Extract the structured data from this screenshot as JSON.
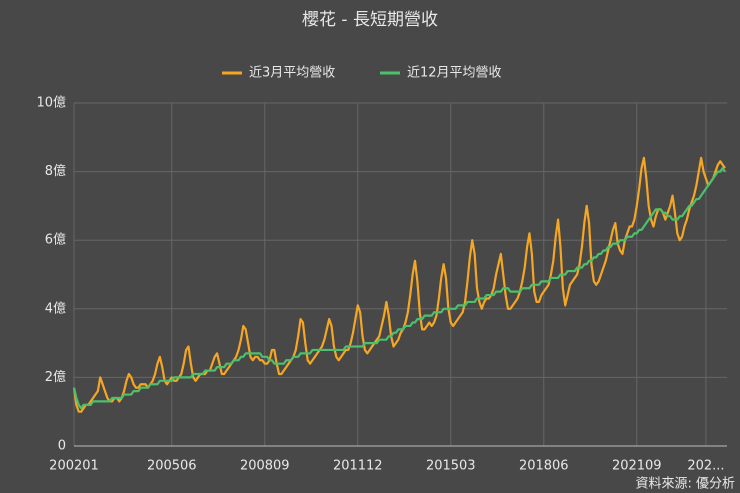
{
  "chart_data": {
    "type": "line",
    "title": "櫻花 - 長短期營收",
    "source": "資料來源: 優分析",
    "categories": [
      "200201",
      null,
      null,
      null,
      null,
      null,
      null,
      null,
      null,
      null,
      null,
      null,
      null,
      null,
      null,
      null,
      null,
      null,
      null,
      null,
      null,
      null,
      null,
      null,
      null,
      null,
      null,
      null,
      null,
      null,
      null,
      null,
      null,
      null,
      null,
      null,
      null,
      null,
      null,
      null,
      null,
      "200506",
      null,
      null,
      null,
      null,
      null,
      null,
      null,
      null,
      null,
      null,
      null,
      null,
      null,
      null,
      null,
      null,
      null,
      null,
      null,
      null,
      null,
      null,
      null,
      null,
      null,
      null,
      null,
      null,
      null,
      null,
      null,
      null,
      null,
      null,
      null,
      null,
      null,
      null,
      "200809",
      null,
      null,
      null,
      null,
      null,
      null,
      null,
      null,
      null,
      null,
      null,
      null,
      null,
      null,
      null,
      null,
      null,
      null,
      null,
      null,
      null,
      null,
      null,
      null,
      null,
      null,
      null,
      null,
      null,
      null,
      null,
      null,
      null,
      null,
      null,
      null,
      null,
      null,
      "201112",
      null,
      null,
      null,
      null,
      null,
      null,
      null,
      null,
      null,
      null,
      null,
      null,
      null,
      null,
      null,
      null,
      null,
      null,
      null,
      null,
      null,
      null,
      null,
      null,
      null,
      null,
      null,
      null,
      null,
      null,
      null,
      null,
      null,
      null,
      null,
      null,
      null,
      null,
      "201503",
      null,
      null,
      null,
      null,
      null,
      null,
      null,
      null,
      null,
      null,
      null,
      null,
      null,
      null,
      null,
      null,
      null,
      null,
      null,
      null,
      null,
      null,
      null,
      null,
      null,
      null,
      null,
      null,
      null,
      null,
      null,
      null,
      null,
      null,
      null,
      null,
      null,
      null,
      "201806",
      null,
      null,
      null,
      null,
      null,
      null,
      null,
      null,
      null,
      null,
      null,
      null,
      null,
      null,
      null,
      null,
      null,
      null,
      null,
      null,
      null,
      null,
      null,
      null,
      null,
      null,
      null,
      null,
      null,
      null,
      null,
      null,
      null,
      null,
      null,
      null,
      null,
      null,
      "202109",
      null,
      null,
      null,
      null,
      null,
      null,
      null,
      null,
      null,
      null,
      null,
      null,
      null,
      null,
      null,
      null,
      null,
      null,
      null,
      null,
      null,
      null,
      null,
      null,
      null,
      null,
      null,
      null,
      "202...",
      null,
      null,
      null,
      null,
      null,
      null,
      null,
      null
    ],
    "series": [
      {
        "name": "近3月平均營收",
        "color": "#f5a623",
        "values": [
          1.7,
          1.2,
          1.0,
          1.0,
          1.1,
          1.2,
          1.2,
          1.3,
          1.4,
          1.5,
          1.6,
          2.0,
          1.8,
          1.6,
          1.4,
          1.3,
          1.3,
          1.4,
          1.4,
          1.3,
          1.4,
          1.6,
          1.9,
          2.1,
          2.0,
          1.8,
          1.7,
          1.7,
          1.8,
          1.8,
          1.8,
          1.7,
          1.8,
          1.9,
          2.1,
          2.4,
          2.6,
          2.3,
          1.9,
          1.8,
          1.9,
          2.0,
          1.9,
          1.9,
          2.0,
          2.1,
          2.4,
          2.8,
          2.9,
          2.4,
          2.0,
          1.9,
          2.0,
          2.1,
          2.1,
          2.1,
          2.2,
          2.2,
          2.4,
          2.6,
          2.7,
          2.4,
          2.1,
          2.1,
          2.2,
          2.3,
          2.4,
          2.5,
          2.6,
          2.8,
          3.1,
          3.5,
          3.4,
          3.0,
          2.6,
          2.5,
          2.6,
          2.6,
          2.5,
          2.5,
          2.4,
          2.4,
          2.5,
          2.8,
          2.8,
          2.4,
          2.1,
          2.1,
          2.2,
          2.3,
          2.4,
          2.5,
          2.6,
          2.8,
          3.2,
          3.7,
          3.6,
          3.0,
          2.5,
          2.4,
          2.5,
          2.6,
          2.7,
          2.8,
          2.9,
          3.1,
          3.4,
          3.7,
          3.5,
          2.9,
          2.6,
          2.5,
          2.6,
          2.7,
          2.8,
          2.8,
          3.0,
          3.3,
          3.7,
          4.1,
          3.9,
          3.2,
          2.8,
          2.7,
          2.8,
          2.9,
          3.0,
          3.1,
          3.2,
          3.5,
          3.8,
          4.2,
          3.8,
          3.2,
          2.9,
          3.0,
          3.1,
          3.3,
          3.4,
          3.6,
          3.9,
          4.4,
          5.0,
          5.4,
          4.8,
          3.9,
          3.4,
          3.4,
          3.5,
          3.6,
          3.5,
          3.6,
          3.8,
          4.3,
          4.9,
          5.3,
          4.9,
          4.0,
          3.6,
          3.5,
          3.6,
          3.7,
          3.8,
          3.9,
          4.2,
          4.8,
          5.5,
          6.0,
          5.6,
          4.6,
          4.2,
          4.0,
          4.2,
          4.3,
          4.3,
          4.4,
          4.6,
          5.0,
          5.3,
          5.6,
          5.0,
          4.4,
          4.0,
          4.0,
          4.1,
          4.2,
          4.3,
          4.5,
          4.8,
          5.2,
          5.8,
          6.2,
          5.6,
          4.5,
          4.2,
          4.2,
          4.4,
          4.5,
          4.6,
          4.7,
          5.0,
          5.4,
          6.1,
          6.6,
          5.8,
          4.6,
          4.1,
          4.4,
          4.7,
          4.8,
          4.9,
          5.0,
          5.3,
          5.8,
          6.5,
          7.0,
          6.5,
          5.3,
          4.8,
          4.7,
          4.8,
          5.0,
          5.2,
          5.4,
          5.7,
          6.0,
          6.3,
          6.5,
          5.9,
          5.7,
          5.6,
          6.0,
          6.2,
          6.4,
          6.4,
          6.6,
          7.0,
          7.5,
          8.1,
          8.4,
          7.8,
          7.0,
          6.6,
          6.4,
          6.7,
          6.9,
          6.9,
          6.8,
          6.6,
          6.8,
          7.0,
          7.3,
          6.8,
          6.2,
          6.0,
          6.1,
          6.4,
          6.6,
          6.9,
          7.1,
          7.3,
          7.6,
          8.0,
          8.4,
          8.0,
          7.8,
          7.6,
          7.7,
          7.8,
          8.0,
          8.2,
          8.3,
          8.2,
          8.1
        ]
      },
      {
        "name": "近12月平均營收",
        "color": "#4cc06a",
        "values": [
          1.7,
          1.4,
          1.2,
          1.1,
          1.2,
          1.2,
          1.2,
          1.2,
          1.3,
          1.3,
          1.3,
          1.3,
          1.3,
          1.3,
          1.3,
          1.3,
          1.4,
          1.4,
          1.4,
          1.4,
          1.4,
          1.5,
          1.5,
          1.5,
          1.5,
          1.6,
          1.6,
          1.6,
          1.7,
          1.7,
          1.7,
          1.7,
          1.8,
          1.8,
          1.8,
          1.8,
          1.9,
          1.9,
          1.9,
          1.9,
          1.9,
          1.9,
          2.0,
          2.0,
          2.0,
          2.0,
          2.0,
          2.0,
          2.0,
          2.0,
          2.1,
          2.1,
          2.1,
          2.1,
          2.1,
          2.2,
          2.2,
          2.2,
          2.2,
          2.2,
          2.3,
          2.3,
          2.3,
          2.3,
          2.4,
          2.4,
          2.4,
          2.5,
          2.5,
          2.5,
          2.6,
          2.6,
          2.7,
          2.7,
          2.7,
          2.7,
          2.7,
          2.7,
          2.7,
          2.6,
          2.6,
          2.6,
          2.5,
          2.5,
          2.4,
          2.4,
          2.4,
          2.4,
          2.4,
          2.5,
          2.5,
          2.5,
          2.6,
          2.6,
          2.6,
          2.7,
          2.7,
          2.7,
          2.7,
          2.7,
          2.8,
          2.8,
          2.8,
          2.8,
          2.8,
          2.8,
          2.8,
          2.8,
          2.8,
          2.8,
          2.8,
          2.8,
          2.8,
          2.8,
          2.9,
          2.9,
          2.9,
          2.9,
          2.9,
          2.9,
          2.9,
          2.9,
          3.0,
          3.0,
          3.0,
          3.0,
          3.0,
          3.0,
          3.1,
          3.1,
          3.1,
          3.1,
          3.2,
          3.2,
          3.3,
          3.3,
          3.4,
          3.4,
          3.4,
          3.5,
          3.5,
          3.5,
          3.6,
          3.6,
          3.7,
          3.7,
          3.7,
          3.8,
          3.8,
          3.8,
          3.8,
          3.9,
          3.9,
          3.9,
          3.9,
          4.0,
          4.0,
          4.0,
          4.0,
          4.0,
          4.0,
          4.1,
          4.1,
          4.1,
          4.1,
          4.2,
          4.2,
          4.2,
          4.2,
          4.3,
          4.3,
          4.3,
          4.3,
          4.4,
          4.4,
          4.4,
          4.4,
          4.5,
          4.5,
          4.5,
          4.6,
          4.6,
          4.6,
          4.5,
          4.5,
          4.5,
          4.5,
          4.5,
          4.6,
          4.6,
          4.6,
          4.6,
          4.7,
          4.7,
          4.7,
          4.7,
          4.8,
          4.8,
          4.8,
          4.8,
          4.9,
          4.9,
          4.9,
          4.9,
          5.0,
          5.0,
          5.0,
          5.1,
          5.1,
          5.1,
          5.1,
          5.2,
          5.2,
          5.2,
          5.3,
          5.3,
          5.4,
          5.4,
          5.5,
          5.5,
          5.6,
          5.6,
          5.7,
          5.7,
          5.8,
          5.8,
          5.9,
          5.9,
          5.9,
          6.0,
          6.0,
          6.0,
          6.1,
          6.1,
          6.1,
          6.2,
          6.2,
          6.3,
          6.3,
          6.4,
          6.5,
          6.6,
          6.7,
          6.8,
          6.9,
          6.9,
          6.9,
          6.8,
          6.8,
          6.7,
          6.7,
          6.6,
          6.6,
          6.6,
          6.7,
          6.7,
          6.8,
          6.9,
          7.0,
          7.0,
          7.1,
          7.2,
          7.2,
          7.3,
          7.4,
          7.5,
          7.6,
          7.7,
          7.8,
          7.9,
          8.0,
          8.0,
          8.1,
          8.0
        ]
      }
    ],
    "ylim": [
      0,
      10
    ],
    "yticks": [
      0,
      {
        "value": 2,
        "label": "2億"
      },
      {
        "value": 4,
        "label": "4億"
      },
      {
        "value": 6,
        "label": "6億"
      },
      {
        "value": 8,
        "label": "8億"
      },
      {
        "value": 10,
        "label": "10億"
      }
    ],
    "grid": true,
    "legend": "top"
  }
}
